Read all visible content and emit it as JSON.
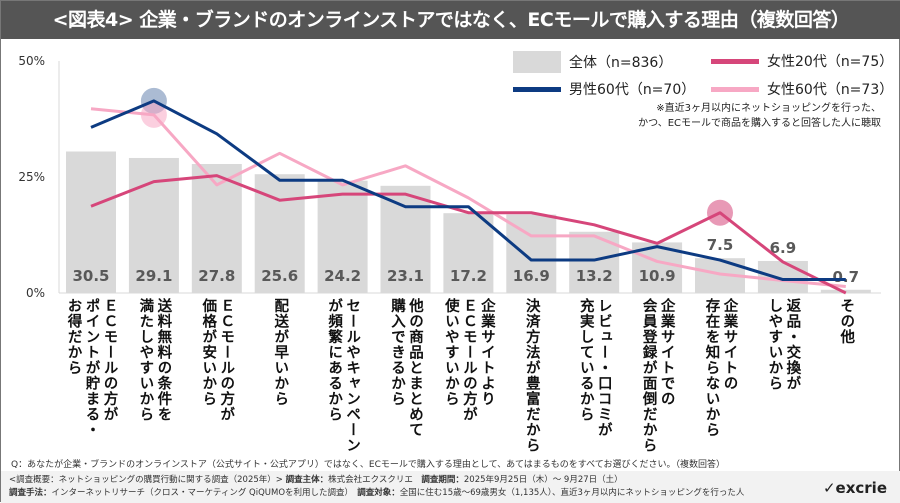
{
  "title": "<図表4> 企業・ブランドのオンラインストアではなく、ECモールで購入する理由（複数回答）",
  "note": [
    "※直近3ヶ月以内にネットショッピングを行った、",
    "かつ、ECモールで商品を購入すると回答した人に聴取"
  ],
  "question": "Q：あなたが企業・ブランドのオンラインストア（公式サイト・公式アプリ）ではなく、ECモールで購入する理由として、あてはまるものをすべてお選びください。（複数回答）",
  "footer": {
    "overview": "<調査概要：ネットショッピングの購買行動に関する調査（2025年）> ",
    "org_label": "調査主体：",
    "org": "株式会社エクスクリエ　",
    "period_label": "調査期間：",
    "period": "2025年9月25日（木）～ 9月27日（土）",
    "method_label": "調査手法：",
    "method": "インターネットリサーチ（クロス・マーケティング QiQUMOを利用した調査）　",
    "target_label": "調査対象：",
    "target": "全国に住む15歳～69歳男女（1,135人）、直近3ヶ月以内にネットショッピングを行った人"
  },
  "logo": "excrie",
  "chart_data": {
    "type": "bar+line",
    "ylim": [
      0,
      50
    ],
    "yticks": [
      "0%",
      "25%",
      "50%"
    ],
    "categories": [
      [
        "ＥＣモールの方が",
        "ポイントが貯まる・",
        "お得だから"
      ],
      [
        "送料無料の条件を",
        "満たしやすいから"
      ],
      [
        "ＥＣモールの方が",
        "価格が安いから"
      ],
      [
        "配送が早いから"
      ],
      [
        "セールやキャンペーン",
        "が頻繁にあるから"
      ],
      [
        "他の商品とまとめて",
        "購入できるから"
      ],
      [
        "企業サイトより",
        "ＥＣモールの方が",
        "使いやすいから"
      ],
      [
        "決済方法が豊富だから"
      ],
      [
        "レビュー・口コミが",
        "充実しているから"
      ],
      [
        "企業サイトでの",
        "会員登録が面倒だから"
      ],
      [
        "企業サイトの",
        "存在を知らないから"
      ],
      [
        "返品・交換が",
        "しやすいから"
      ],
      [
        "その他"
      ]
    ],
    "bars": {
      "name": "全体（n=836）",
      "color": "#d9d9d9",
      "values": [
        30.5,
        29.1,
        27.8,
        25.6,
        24.2,
        23.1,
        17.2,
        16.9,
        13.2,
        10.9,
        7.5,
        6.9,
        0.7
      ]
    },
    "series": [
      {
        "name": "男性60代（n=70）",
        "color": "#0d3b82",
        "values": [
          35.7,
          41.4,
          34.3,
          24.3,
          24.3,
          18.6,
          18.6,
          7.1,
          7.1,
          10.0,
          7.1,
          2.9,
          2.9
        ],
        "highlight": [
          1
        ]
      },
      {
        "name": "女性20代（n=75）",
        "color": "#d6467a",
        "values": [
          18.7,
          24.0,
          25.3,
          20.0,
          21.3,
          21.3,
          17.3,
          17.3,
          14.7,
          10.7,
          17.3,
          6.7,
          0.0
        ],
        "highlight": [
          10
        ]
      },
      {
        "name": "女性60代（n=73）",
        "color": "#f7a8c4",
        "values": [
          39.7,
          38.4,
          23.3,
          30.1,
          23.3,
          27.4,
          20.5,
          12.3,
          12.3,
          6.8,
          4.1,
          2.7,
          1.4
        ],
        "highlight": [
          1
        ]
      }
    ],
    "legend": "top-right"
  }
}
